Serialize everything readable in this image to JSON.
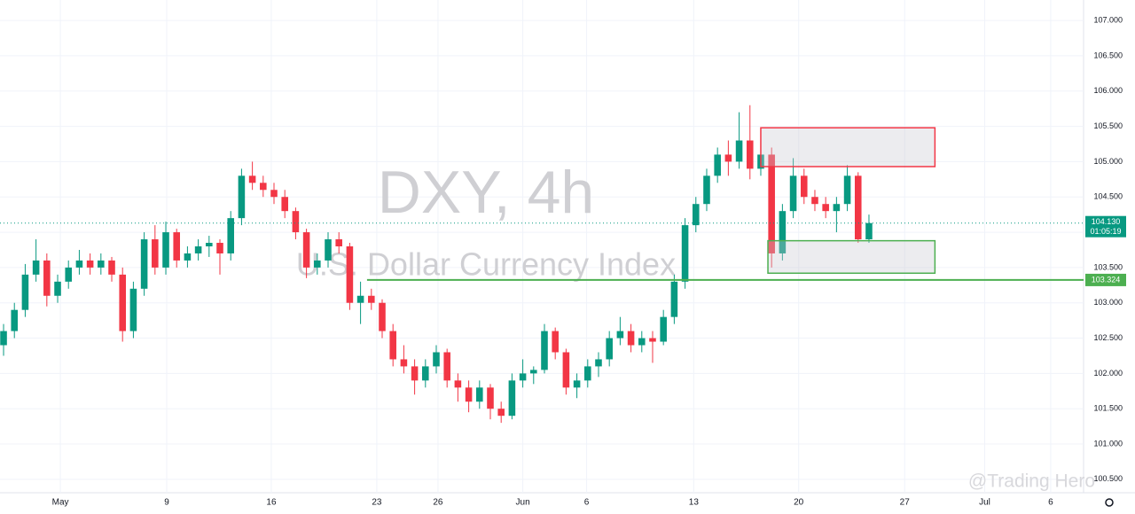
{
  "chart_data": {
    "type": "candlestick",
    "title": "DXY, 4h",
    "subtitle": "U.S. Dollar Currency Index",
    "watermark": "@Trading Hero",
    "up_color": "#089981",
    "down_color": "#f23645",
    "ohlc": [
      [
        102.4,
        102.7,
        102.25,
        102.6
      ],
      [
        102.6,
        103.0,
        102.5,
        102.9
      ],
      [
        102.9,
        103.55,
        102.8,
        103.4
      ],
      [
        103.4,
        103.9,
        103.3,
        103.6
      ],
      [
        103.6,
        103.7,
        102.95,
        103.1
      ],
      [
        103.1,
        103.4,
        103.0,
        103.3
      ],
      [
        103.3,
        103.6,
        103.2,
        103.5
      ],
      [
        103.5,
        103.75,
        103.4,
        103.6
      ],
      [
        103.6,
        103.7,
        103.4,
        103.5
      ],
      [
        103.5,
        103.7,
        103.4,
        103.6
      ],
      [
        103.6,
        103.65,
        103.3,
        103.4
      ],
      [
        103.4,
        103.5,
        102.45,
        102.6
      ],
      [
        102.6,
        103.3,
        102.5,
        103.2
      ],
      [
        103.2,
        104.0,
        103.1,
        103.9
      ],
      [
        103.9,
        104.1,
        103.4,
        103.5
      ],
      [
        103.5,
        104.15,
        103.4,
        104.0
      ],
      [
        104.0,
        104.05,
        103.5,
        103.6
      ],
      [
        103.6,
        103.8,
        103.5,
        103.7
      ],
      [
        103.7,
        103.9,
        103.6,
        103.8
      ],
      [
        103.8,
        103.95,
        103.65,
        103.85
      ],
      [
        103.85,
        103.9,
        103.4,
        103.7
      ],
      [
        103.7,
        104.3,
        103.6,
        104.2
      ],
      [
        104.2,
        104.9,
        104.1,
        104.8
      ],
      [
        104.8,
        105.0,
        104.6,
        104.7
      ],
      [
        104.7,
        104.8,
        104.5,
        104.6
      ],
      [
        104.6,
        104.7,
        104.4,
        104.5
      ],
      [
        104.5,
        104.6,
        104.2,
        104.3
      ],
      [
        104.3,
        104.35,
        103.9,
        104.0
      ],
      [
        104.0,
        104.05,
        103.35,
        103.5
      ],
      [
        103.5,
        103.7,
        103.4,
        103.6
      ],
      [
        103.6,
        104.0,
        103.5,
        103.9
      ],
      [
        103.9,
        104.0,
        103.7,
        103.8
      ],
      [
        103.8,
        103.85,
        102.9,
        103.0
      ],
      [
        103.0,
        103.3,
        102.7,
        103.1
      ],
      [
        103.1,
        103.2,
        102.9,
        103.0
      ],
      [
        103.0,
        103.05,
        102.5,
        102.6
      ],
      [
        102.6,
        102.7,
        102.1,
        102.2
      ],
      [
        102.2,
        102.4,
        102.0,
        102.1
      ],
      [
        102.1,
        102.2,
        101.7,
        101.9
      ],
      [
        101.9,
        102.2,
        101.8,
        102.1
      ],
      [
        102.1,
        102.4,
        102.0,
        102.3
      ],
      [
        102.3,
        102.35,
        101.8,
        101.9
      ],
      [
        101.9,
        102.0,
        101.6,
        101.8
      ],
      [
        101.8,
        101.9,
        101.45,
        101.6
      ],
      [
        101.6,
        101.9,
        101.5,
        101.8
      ],
      [
        101.8,
        101.85,
        101.35,
        101.5
      ],
      [
        101.5,
        101.6,
        101.3,
        101.4
      ],
      [
        101.4,
        102.0,
        101.35,
        101.9
      ],
      [
        101.9,
        102.2,
        101.8,
        102.0
      ],
      [
        102.0,
        102.1,
        101.85,
        102.05
      ],
      [
        102.05,
        102.7,
        102.0,
        102.6
      ],
      [
        102.6,
        102.65,
        102.2,
        102.3
      ],
      [
        102.3,
        102.35,
        101.7,
        101.8
      ],
      [
        101.8,
        102.0,
        101.65,
        101.9
      ],
      [
        101.9,
        102.2,
        101.8,
        102.1
      ],
      [
        102.1,
        102.3,
        101.95,
        102.2
      ],
      [
        102.2,
        102.6,
        102.1,
        102.5
      ],
      [
        102.5,
        102.8,
        102.4,
        102.6
      ],
      [
        102.6,
        102.7,
        102.3,
        102.4
      ],
      [
        102.4,
        102.6,
        102.3,
        102.5
      ],
      [
        102.5,
        102.6,
        102.15,
        102.45
      ],
      [
        102.45,
        102.9,
        102.4,
        102.8
      ],
      [
        102.8,
        103.4,
        102.7,
        103.3
      ],
      [
        103.3,
        104.2,
        103.2,
        104.1
      ],
      [
        104.1,
        104.5,
        104.0,
        104.4
      ],
      [
        104.4,
        104.9,
        104.3,
        104.8
      ],
      [
        104.8,
        105.2,
        104.7,
        105.1
      ],
      [
        105.1,
        105.3,
        104.8,
        105.0
      ],
      [
        105.0,
        105.7,
        104.9,
        105.3
      ],
      [
        105.3,
        105.8,
        104.75,
        104.9
      ],
      [
        104.9,
        105.3,
        104.8,
        105.1
      ],
      [
        105.1,
        105.2,
        103.5,
        103.7
      ],
      [
        103.7,
        104.4,
        103.6,
        104.3
      ],
      [
        104.3,
        105.05,
        104.2,
        104.8
      ],
      [
        104.8,
        104.9,
        104.4,
        104.5
      ],
      [
        104.5,
        104.6,
        104.3,
        104.4
      ],
      [
        104.4,
        104.5,
        104.2,
        104.3
      ],
      [
        104.3,
        104.5,
        104.0,
        104.4
      ],
      [
        104.4,
        104.95,
        104.3,
        104.8
      ],
      [
        104.8,
        104.85,
        103.85,
        103.9
      ],
      [
        103.9,
        104.25,
        103.85,
        104.13
      ]
    ],
    "xlim": [
      -0.33,
      99.84
    ],
    "xticks": [
      {
        "value": 5.25,
        "label": "May"
      },
      {
        "value": 15.08,
        "label": "9"
      },
      {
        "value": 24.75,
        "label": "16"
      },
      {
        "value": 34.5,
        "label": "23"
      },
      {
        "value": 40.16,
        "label": "26"
      },
      {
        "value": 48.0,
        "label": "Jun"
      },
      {
        "value": 53.9,
        "label": "6"
      },
      {
        "value": 63.8,
        "label": "13"
      },
      {
        "value": 73.5,
        "label": "20"
      },
      {
        "value": 83.3,
        "label": "27"
      },
      {
        "value": 90.7,
        "label": "Jul"
      },
      {
        "value": 96.8,
        "label": "6"
      }
    ],
    "ylim": [
      100.31,
      107.29
    ],
    "yticks": [
      {
        "value": 100.5,
        "label": "100.500"
      },
      {
        "value": 101,
        "label": "101.000"
      },
      {
        "value": 101.5,
        "label": "101.500"
      },
      {
        "value": 102,
        "label": "102.000"
      },
      {
        "value": 102.5,
        "label": "102.500"
      },
      {
        "value": 103,
        "label": "103.000"
      },
      {
        "value": 103.5,
        "label": "103.500"
      },
      {
        "value": 104,
        "label": "104.000"
      },
      {
        "value": 104.5,
        "label": "104.500"
      },
      {
        "value": 105,
        "label": "105.000"
      },
      {
        "value": 105.5,
        "label": "105.500"
      },
      {
        "value": 106,
        "label": "106.000"
      },
      {
        "value": 106.5,
        "label": "106.500"
      },
      {
        "value": 107,
        "label": "107.000"
      }
    ],
    "grid": true,
    "last_price": {
      "value": 104.13,
      "label": "104.130",
      "countdown": "01:05:19",
      "color": "#089981"
    },
    "level": {
      "value": 103.324,
      "label": "103.324",
      "color": "#4caf50"
    },
    "zones": [
      {
        "x": [
          70.0,
          86.1
        ],
        "y": [
          104.93,
          105.48
        ],
        "color": "#f23645"
      },
      {
        "x": [
          70.66,
          86.1
        ],
        "y": [
          103.42,
          103.88
        ],
        "color": "#4caf50"
      }
    ]
  }
}
